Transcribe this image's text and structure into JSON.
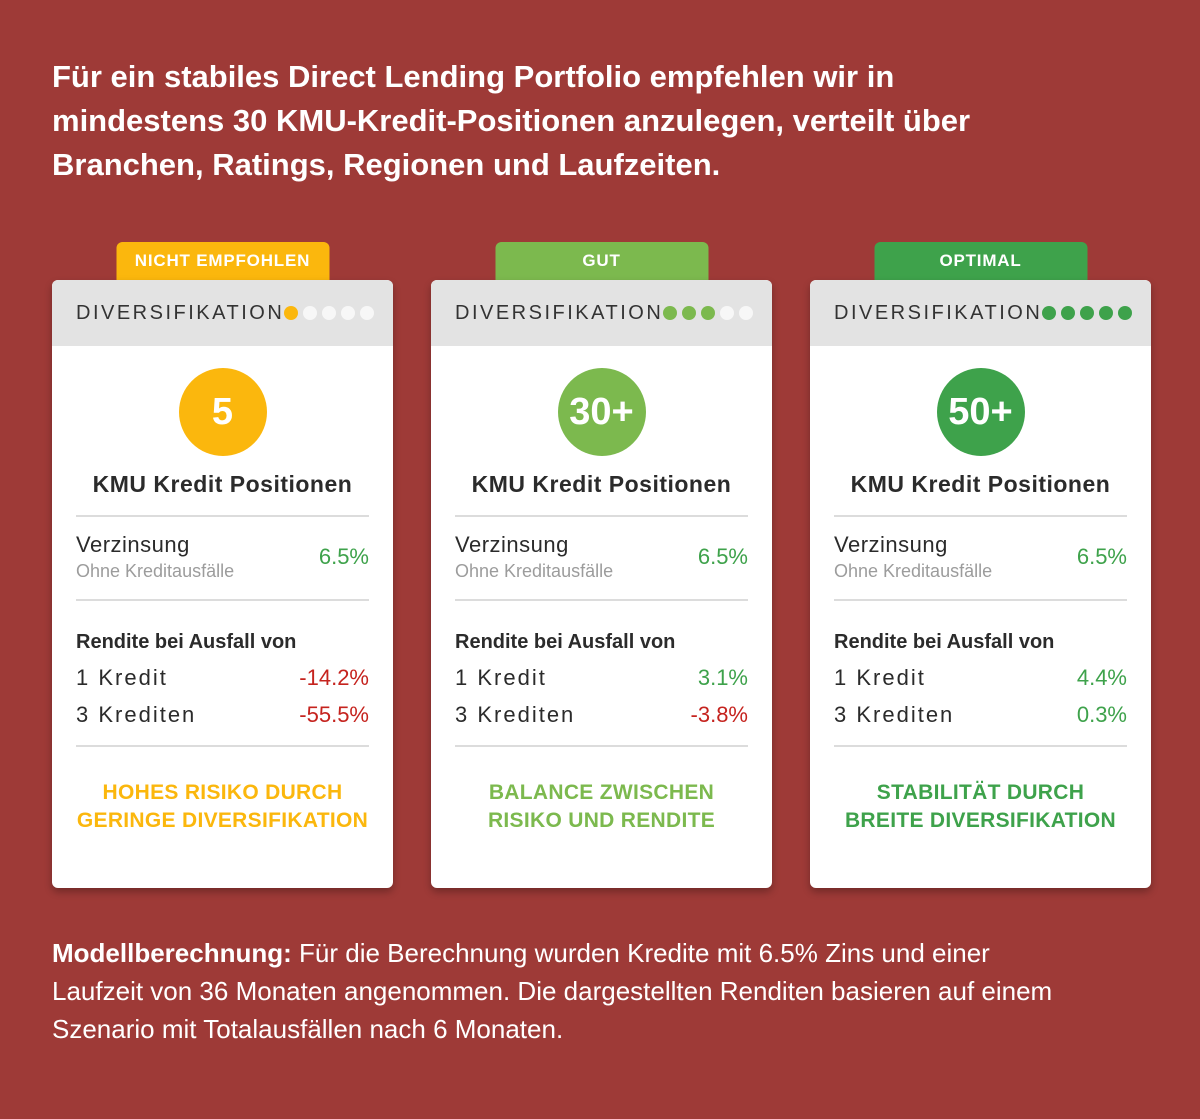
{
  "page": {
    "background_color": "#9E3A37"
  },
  "headline": {
    "lines": [
      "Für ein stabiles Direct Lending Portfolio empfehlen wir in",
      "mindestens 30 KMU-Kredit-Positionen anzulegen, verteilt über",
      "Branchen, Ratings, Regionen und Laufzeiten."
    ]
  },
  "cards": [
    {
      "badge": "NICHT EMPFOHLEN",
      "accent": "#FBB70D",
      "header_label": "DIVERSIFIKATION",
      "dots_filled": 1,
      "dots": [
        "#FBB70D",
        "#F7F7F7",
        "#F7F7F7",
        "#F7F7F7",
        "#F7F7F7"
      ],
      "circle_value": "5",
      "positions_label": "KMU Kredit Positionen",
      "interest": {
        "label": "Verzinsung",
        "sublabel": "Ohne Kreditausfälle",
        "value": "6.5%",
        "value_color": "#3EA24B"
      },
      "default_section": {
        "title": "Rendite bei Ausfall von",
        "rows": [
          {
            "label": "1 Kredit",
            "value": "-14.2%",
            "value_color": "#C5231E"
          },
          {
            "label": "3 Krediten",
            "value": "-55.5%",
            "value_color": "#C5231E"
          }
        ]
      },
      "status": {
        "lines": [
          "HOHES RISIKO DURCH",
          "GERINGE DIVERSIFIKATION"
        ],
        "color": "#FBB70D"
      }
    },
    {
      "badge": "GUT",
      "accent": "#7CB94E",
      "header_label": "DIVERSIFIKATION",
      "dots_filled": 3,
      "dots": [
        "#7CB94E",
        "#7CB94E",
        "#7CB94E",
        "#F7F7F7",
        "#F7F7F7"
      ],
      "circle_value": "30+",
      "positions_label": "KMU Kredit Positionen",
      "interest": {
        "label": "Verzinsung",
        "sublabel": "Ohne Kreditausfälle",
        "value": "6.5%",
        "value_color": "#3EA24B"
      },
      "default_section": {
        "title": "Rendite bei Ausfall von",
        "rows": [
          {
            "label": "1 Kredit",
            "value": "3.1%",
            "value_color": "#3EA24B"
          },
          {
            "label": "3 Krediten",
            "value": "-3.8%",
            "value_color": "#C5231E"
          }
        ]
      },
      "status": {
        "lines": [
          "BALANCE ZWISCHEN",
          "RISIKO UND RENDITE"
        ],
        "color": "#7CB94E"
      }
    },
    {
      "badge": "OPTIMAL",
      "accent": "#3EA24B",
      "header_label": "DIVERSIFIKATION",
      "dots_filled": 5,
      "dots": [
        "#3EA24B",
        "#3EA24B",
        "#3EA24B",
        "#3EA24B",
        "#3EA24B"
      ],
      "circle_value": "50+",
      "positions_label": "KMU Kredit Positionen",
      "interest": {
        "label": "Verzinsung",
        "sublabel": "Ohne Kreditausfälle",
        "value": "6.5%",
        "value_color": "#3EA24B"
      },
      "default_section": {
        "title": "Rendite bei Ausfall von",
        "rows": [
          {
            "label": "1 Kredit",
            "value": "4.4%",
            "value_color": "#3EA24B"
          },
          {
            "label": "3 Krediten",
            "value": "0.3%",
            "value_color": "#3EA24B"
          }
        ]
      },
      "status": {
        "lines": [
          "STABILITÄT DURCH",
          "BREITE DIVERSIFIKATION"
        ],
        "color": "#3EA24B"
      }
    }
  ],
  "footnote": {
    "bold_label": "Modellberechnung:",
    "lines": [
      "Für die Berechnung wurden Kredite mit 6.5% Zins und einer",
      "Laufzeit von 36 Monaten angenommen. Die dargestellten Renditen basieren auf einem",
      "Szenario mit Totalausfällen nach 6 Monaten."
    ]
  }
}
